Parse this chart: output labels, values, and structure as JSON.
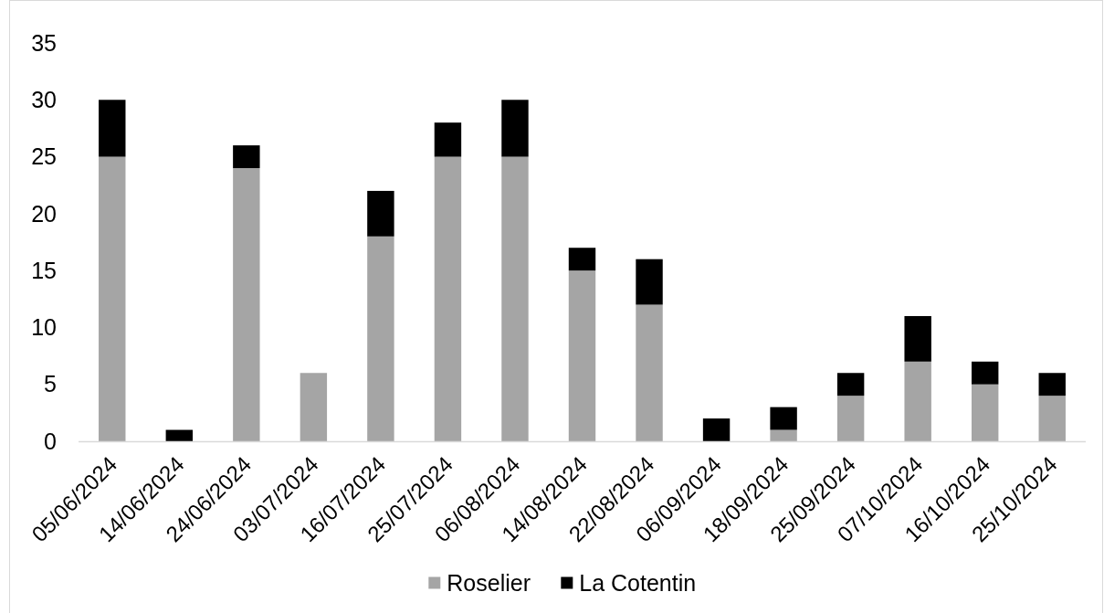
{
  "chart_data": {
    "type": "bar",
    "stacked": true,
    "categories": [
      "05/06/2024",
      "14/06/2024",
      "24/06/2024",
      "03/07/2024",
      "16/07/2024",
      "25/07/2024",
      "06/08/2024",
      "14/08/2024",
      "22/08/2024",
      "06/09/2024",
      "18/09/2024",
      "25/09/2024",
      "07/10/2024",
      "16/10/2024",
      "25/10/2024"
    ],
    "series": [
      {
        "name": "Roselier",
        "color": "#a5a5a5",
        "values": [
          25,
          0,
          24,
          6,
          18,
          25,
          25,
          15,
          12,
          0,
          1,
          4,
          7,
          5,
          4
        ]
      },
      {
        "name": "La Cotentin",
        "color": "#000000",
        "values": [
          5,
          1,
          2,
          0,
          4,
          3,
          5,
          2,
          4,
          2,
          2,
          2,
          4,
          2,
          2
        ]
      }
    ],
    "ylim": [
      0,
      35
    ],
    "yticks": [
      0,
      5,
      10,
      15,
      20,
      25,
      30,
      35
    ],
    "grid": false,
    "legend": "bottom"
  }
}
